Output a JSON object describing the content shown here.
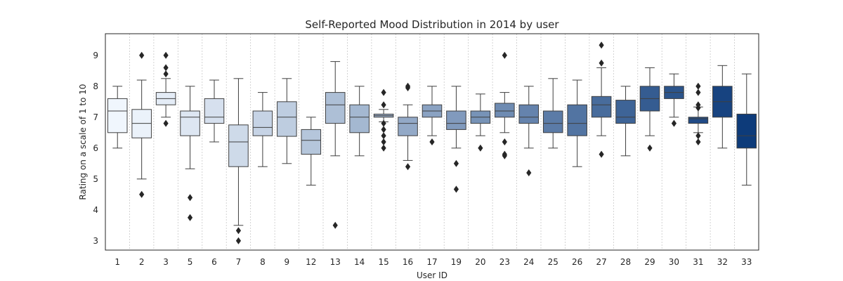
{
  "chart_data": {
    "type": "box",
    "title": "Self-Reported Mood Distribution in 2014 by user",
    "xlabel": "User ID",
    "ylabel": "Rating on a scale of 1 to 10",
    "ylim": [
      2.7,
      9.7
    ],
    "yticks": [
      3,
      4,
      5,
      6,
      7,
      8,
      9
    ],
    "grid": "x-dotted",
    "palette": "Blues",
    "categories": [
      "1",
      "2",
      "3",
      "5",
      "6",
      "7",
      "8",
      "9",
      "12",
      "13",
      "14",
      "15",
      "16",
      "17",
      "19",
      "20",
      "23",
      "24",
      "25",
      "26",
      "27",
      "28",
      "29",
      "30",
      "31",
      "32",
      "33"
    ],
    "boxes": [
      {
        "min": 6.0,
        "q1": 6.5,
        "median": 7.2,
        "q3": 7.6,
        "max": 8.0,
        "outliers": []
      },
      {
        "min": 5.0,
        "q1": 6.33,
        "median": 6.8,
        "q3": 7.25,
        "max": 8.2,
        "outliers": [
          9.0,
          4.5
        ]
      },
      {
        "min": 7.0,
        "q1": 7.4,
        "median": 7.6,
        "q3": 7.8,
        "max": 8.25,
        "outliers": [
          9.0,
          8.6,
          8.4,
          6.8
        ]
      },
      {
        "min": 5.33,
        "q1": 6.4,
        "median": 7.0,
        "q3": 7.2,
        "max": 8.0,
        "outliers": [
          4.4,
          3.75
        ]
      },
      {
        "min": 6.2,
        "q1": 6.8,
        "median": 7.0,
        "q3": 7.6,
        "max": 8.2,
        "outliers": []
      },
      {
        "min": 3.5,
        "q1": 5.4,
        "median": 6.2,
        "q3": 6.75,
        "max": 8.25,
        "outliers": [
          3.33,
          3.0
        ]
      },
      {
        "min": 5.4,
        "q1": 6.4,
        "median": 6.67,
        "q3": 7.2,
        "max": 7.8,
        "outliers": []
      },
      {
        "min": 5.5,
        "q1": 6.38,
        "median": 7.0,
        "q3": 7.5,
        "max": 8.25,
        "outliers": []
      },
      {
        "min": 4.8,
        "q1": 5.8,
        "median": 6.25,
        "q3": 6.6,
        "max": 7.0,
        "outliers": []
      },
      {
        "min": 5.75,
        "q1": 6.8,
        "median": 7.4,
        "q3": 7.8,
        "max": 8.8,
        "outliers": [
          3.5
        ]
      },
      {
        "min": 5.75,
        "q1": 6.5,
        "median": 7.0,
        "q3": 7.4,
        "max": 8.0,
        "outliers": []
      },
      {
        "min": 6.85,
        "q1": 7.0,
        "median": 7.05,
        "q3": 7.1,
        "max": 7.25,
        "outliers": [
          7.8,
          7.4,
          6.8,
          6.6,
          6.4,
          6.2,
          6.0
        ]
      },
      {
        "min": 5.6,
        "q1": 6.4,
        "median": 6.8,
        "q3": 7.0,
        "max": 7.4,
        "outliers": [
          8.0,
          7.95,
          5.4
        ]
      },
      {
        "min": 6.4,
        "q1": 7.0,
        "median": 7.2,
        "q3": 7.4,
        "max": 8.0,
        "outliers": [
          6.2
        ]
      },
      {
        "min": 6.0,
        "q1": 6.6,
        "median": 6.8,
        "q3": 7.2,
        "max": 8.0,
        "outliers": [
          5.5,
          4.67
        ]
      },
      {
        "min": 6.4,
        "q1": 6.8,
        "median": 7.0,
        "q3": 7.2,
        "max": 7.75,
        "outliers": [
          6.0
        ]
      },
      {
        "min": 6.5,
        "q1": 7.0,
        "median": 7.2,
        "q3": 7.45,
        "max": 7.8,
        "outliers": [
          9.0,
          6.2,
          5.8,
          5.75
        ]
      },
      {
        "min": 6.0,
        "q1": 6.8,
        "median": 7.0,
        "q3": 7.4,
        "max": 8.0,
        "outliers": [
          5.2
        ]
      },
      {
        "min": 6.0,
        "q1": 6.5,
        "median": 6.8,
        "q3": 7.2,
        "max": 8.25,
        "outliers": []
      },
      {
        "min": 5.4,
        "q1": 6.4,
        "median": 6.8,
        "q3": 7.4,
        "max": 8.2,
        "outliers": []
      },
      {
        "min": 6.4,
        "q1": 7.0,
        "median": 7.4,
        "q3": 7.67,
        "max": 8.6,
        "outliers": [
          9.33,
          8.75,
          5.8
        ]
      },
      {
        "min": 5.75,
        "q1": 6.8,
        "median": 7.0,
        "q3": 7.55,
        "max": 8.0,
        "outliers": []
      },
      {
        "min": 6.4,
        "q1": 7.2,
        "median": 7.6,
        "q3": 8.0,
        "max": 8.6,
        "outliers": [
          6.0
        ]
      },
      {
        "min": 7.0,
        "q1": 7.6,
        "median": 7.8,
        "q3": 8.0,
        "max": 8.4,
        "outliers": [
          6.8
        ]
      },
      {
        "min": 6.5,
        "q1": 6.8,
        "median": 6.95,
        "q3": 7.0,
        "max": 7.33,
        "outliers": [
          8.0,
          7.8,
          7.4,
          7.3,
          6.4,
          6.2
        ]
      },
      {
        "min": 6.0,
        "q1": 7.0,
        "median": 7.5,
        "q3": 8.0,
        "max": 8.67,
        "outliers": []
      },
      {
        "min": 4.8,
        "q1": 6.0,
        "median": 6.4,
        "q3": 7.1,
        "max": 8.4,
        "outliers": []
      }
    ],
    "colors": {
      "palette_start": "#f0f6fd",
      "palette_end": "#0d3b7a",
      "stroke": "#3f3f3f",
      "outlier": "#262626",
      "grid": "#c8c8c8",
      "frame": "#262626"
    }
  }
}
